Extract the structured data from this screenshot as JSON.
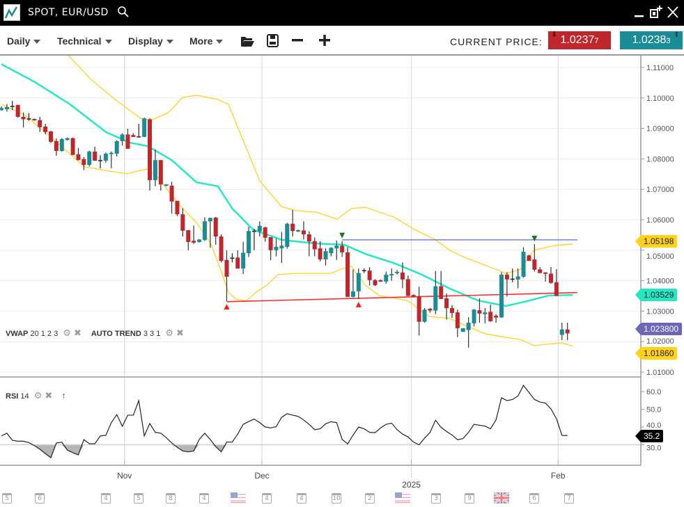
{
  "window": {
    "title": "SPOT, EUR/USD"
  },
  "toolbar": {
    "menus": [
      {
        "label": "Daily"
      },
      {
        "label": "Technical"
      },
      {
        "label": "Display"
      },
      {
        "label": "More"
      }
    ],
    "current_price_label": "CURRENT PRICE:",
    "bid": {
      "main": "1.0237",
      "pip": "7",
      "color": "#c0272d"
    },
    "ask": {
      "main": "1.0238",
      "pip": "3",
      "color": "#1a8c96"
    }
  },
  "indicators": {
    "vwap": {
      "name": "VWAP",
      "params": "20 1 2 3"
    },
    "autotrend": {
      "name": "AUTO TREND",
      "params": "3 3 1"
    },
    "rsi": {
      "name": "RSI",
      "params": "14"
    }
  },
  "tags": {
    "upper_band": "1.05198",
    "middle_band": "1.03529",
    "last_price": "1.023800",
    "lower_band": "1.01860",
    "rsi": "35.2"
  },
  "colors": {
    "up": "#1a8c96",
    "down": "#c0272d",
    "band": "#ffd21a",
    "mid": "#22e8c4",
    "resistance": "#4a6fd6",
    "support": "#ff2a2a",
    "last": "#6a66b8"
  },
  "chart_data": [
    {
      "type": "candlestick",
      "title": "SPOT, EUR/USD",
      "ylim": [
        1.0,
        1.115
      ],
      "y_ticks": [
        "1.11000",
        "1.10000",
        "1.09000",
        "1.08000",
        "1.07000",
        "1.06000",
        "1.05000",
        "1.04000",
        "1.03000",
        "1.02000",
        "1.01000"
      ],
      "grid": true,
      "x_labels": [
        {
          "label": "Nov",
          "index": 22.4
        },
        {
          "label": "Dec",
          "index": 47.4
        },
        {
          "label": "2025",
          "index": 74.6
        },
        {
          "label": "Feb",
          "index": 101.3
        }
      ],
      "candles_ohlc": [
        [
          1.096,
          1.0972,
          1.0958,
          1.0967
        ],
        [
          1.0963,
          1.098,
          1.0955,
          1.097
        ],
        [
          1.0972,
          1.099,
          1.096,
          1.0972
        ],
        [
          1.0977,
          1.0977,
          1.0935,
          1.0938
        ],
        [
          1.0938,
          1.0952,
          1.0903,
          1.093
        ],
        [
          1.0931,
          1.095,
          1.0925,
          1.0931
        ],
        [
          1.0931,
          1.0932,
          1.0925,
          1.0927
        ],
        [
          1.0927,
          1.0938,
          1.0888,
          1.0904
        ],
        [
          1.0906,
          1.0915,
          1.088,
          1.0888
        ],
        [
          1.089,
          1.0892,
          1.0852,
          1.0856
        ],
        [
          1.0858,
          1.0867,
          1.081,
          1.0826
        ],
        [
          1.0826,
          1.0868,
          1.0824,
          1.0865
        ],
        [
          1.0862,
          1.087,
          1.086,
          1.0868
        ],
        [
          1.0868,
          1.087,
          1.0812,
          1.0813
        ],
        [
          1.0815,
          1.0836,
          1.0795,
          1.0796
        ],
        [
          1.0799,
          1.0806,
          1.0763,
          1.078
        ],
        [
          1.078,
          1.0827,
          1.0775,
          1.0824
        ],
        [
          1.0824,
          1.084,
          1.0793,
          1.0794
        ],
        [
          1.0794,
          1.0812,
          1.0769,
          1.0795
        ],
        [
          1.0794,
          1.0821,
          1.0788,
          1.0817
        ],
        [
          1.0817,
          1.0824,
          1.0769,
          1.082
        ],
        [
          1.0817,
          1.0861,
          1.0808,
          1.0858
        ],
        [
          1.0858,
          1.0884,
          1.0844,
          1.088
        ],
        [
          1.088,
          1.0899,
          1.0833,
          1.0833
        ],
        [
          1.0878,
          1.0884,
          1.0872,
          1.0872
        ],
        [
          1.0872,
          1.0915,
          1.0872,
          1.0872
        ],
        [
          1.0872,
          1.0935,
          1.0872,
          1.0933
        ],
        [
          1.093,
          1.0933,
          1.0696,
          1.073
        ],
        [
          1.073,
          1.083,
          1.071,
          1.0796
        ],
        [
          1.0796,
          1.0796,
          1.0696,
          1.0716
        ],
        [
          1.0712,
          1.0717,
          1.071,
          1.0716
        ],
        [
          1.0712,
          1.0725,
          1.062,
          1.066
        ],
        [
          1.0662,
          1.0662,
          1.0612,
          1.0618
        ],
        [
          1.0618,
          1.0638,
          1.0545,
          1.0564
        ],
        [
          1.0566,
          1.0566,
          1.05,
          1.0527
        ],
        [
          1.0531,
          1.0581,
          1.052,
          1.0525
        ],
        [
          1.0527,
          1.0537,
          1.0525,
          1.0535
        ],
        [
          1.0534,
          1.0608,
          1.053,
          1.0595
        ],
        [
          1.0595,
          1.0607,
          1.0508,
          1.0606
        ],
        [
          1.0607,
          1.0609,
          1.0518,
          1.0545
        ],
        [
          1.0545,
          1.0552,
          1.046,
          1.0465
        ],
        [
          1.0468,
          1.05,
          1.0333,
          1.0413
        ],
        [
          1.0474,
          1.049,
          1.046,
          1.0475
        ],
        [
          1.0476,
          1.05,
          1.044,
          1.044
        ],
        [
          1.044,
          1.0528,
          1.0422,
          1.0492
        ],
        [
          1.049,
          1.0577,
          1.0478,
          1.0563
        ],
        [
          1.0562,
          1.057,
          1.05,
          1.0563
        ],
        [
          1.0562,
          1.0595,
          1.0545,
          1.058
        ],
        [
          1.0575,
          1.0577,
          1.0528,
          1.0541
        ],
        [
          1.0543,
          1.0543,
          1.0467,
          1.05
        ],
        [
          1.05,
          1.0538,
          1.048,
          1.0511
        ],
        [
          1.0506,
          1.056,
          1.0458,
          1.0515
        ],
        [
          1.0511,
          1.059,
          1.0505,
          1.0587
        ],
        [
          1.0587,
          1.0632,
          1.0545,
          1.0563
        ],
        [
          1.0562,
          1.0568,
          1.056,
          1.0566
        ],
        [
          1.0565,
          1.0595,
          1.0535,
          1.0552
        ],
        [
          1.0552,
          1.0562,
          1.048,
          1.0529
        ],
        [
          1.053,
          1.0542,
          1.048,
          1.0503
        ],
        [
          1.0506,
          1.053,
          1.0463,
          1.047
        ],
        [
          1.047,
          1.0507,
          1.045,
          1.0497
        ],
        [
          1.049,
          1.051,
          1.048,
          1.0508
        ],
        [
          1.0506,
          1.0532,
          1.0468,
          1.0515
        ],
        [
          1.0515,
          1.053,
          1.0478,
          1.0493
        ],
        [
          1.0493,
          1.051,
          1.0347,
          1.0347
        ],
        [
          1.0347,
          1.0437,
          1.0345,
          1.0365
        ],
        [
          1.0365,
          1.044,
          1.034,
          1.0425
        ],
        [
          1.0433,
          1.044,
          1.0425,
          1.0433
        ],
        [
          1.0433,
          1.0445,
          1.0384,
          1.0402
        ],
        [
          1.0402,
          1.0405,
          1.0383,
          1.0385
        ],
        [
          1.0402,
          1.0404,
          1.0396,
          1.0397
        ],
        [
          1.0397,
          1.043,
          1.039,
          1.042
        ],
        [
          1.0418,
          1.044,
          1.04,
          1.0422
        ],
        [
          1.0425,
          1.0435,
          1.042,
          1.0429
        ],
        [
          1.0427,
          1.046,
          1.0375,
          1.0404
        ],
        [
          1.0405,
          1.0417,
          1.0349,
          1.035
        ],
        [
          1.0353,
          1.0355,
          1.0345,
          1.0347
        ],
        [
          1.0349,
          1.038,
          1.022,
          1.0265
        ],
        [
          1.0265,
          1.031,
          1.0262,
          1.0305
        ],
        [
          1.0308,
          1.031,
          1.0295,
          1.0302
        ],
        [
          1.0302,
          1.0432,
          1.029,
          1.0382
        ],
        [
          1.0382,
          1.0432,
          1.034,
          1.034
        ],
        [
          1.0342,
          1.0358,
          1.0272,
          1.031
        ],
        [
          1.031,
          1.032,
          1.0278,
          1.0294
        ],
        [
          1.0296,
          1.0305,
          1.0215,
          1.0244
        ],
        [
          1.0232,
          1.0244,
          1.0232,
          1.0244
        ],
        [
          1.0238,
          1.028,
          1.018,
          1.0262
        ],
        [
          1.026,
          1.0307,
          1.025,
          1.0305
        ],
        [
          1.0303,
          1.0342,
          1.0262,
          1.0292
        ],
        [
          1.029,
          1.031,
          1.026,
          1.0296
        ],
        [
          1.0298,
          1.0322,
          1.0265,
          1.0267
        ],
        [
          1.0285,
          1.029,
          1.0262,
          1.0279
        ],
        [
          1.0279,
          1.0428,
          1.0279,
          1.042
        ],
        [
          1.042,
          1.0428,
          1.0348,
          1.0404
        ],
        [
          1.0405,
          1.044,
          1.0395,
          1.0406
        ],
        [
          1.0404,
          1.044,
          1.0375,
          1.0414
        ],
        [
          1.0413,
          1.051,
          1.041,
          1.0495
        ],
        [
          1.0483,
          1.0485,
          1.0465,
          1.0465
        ],
        [
          1.047,
          1.052,
          1.043,
          1.0436
        ],
        [
          1.0437,
          1.0445,
          1.0425,
          1.0425
        ],
        [
          1.0427,
          1.0428,
          1.0397,
          1.0423
        ],
        [
          1.0423,
          1.0445,
          1.039,
          1.0393
        ],
        [
          1.0395,
          1.0438,
          1.035,
          1.035
        ],
        [
          1.0222,
          1.0262,
          1.0205,
          1.024
        ],
        [
          1.024,
          1.0262,
          1.0205,
          1.0227
        ]
      ],
      "band_upper": [
        [
          12,
          1.1143
        ],
        [
          16.4,
          1.1059
        ],
        [
          20.2,
          1.1002
        ],
        [
          25.3,
          1.0933
        ],
        [
          27.2,
          1.0926
        ],
        [
          30.4,
          1.0952
        ],
        [
          33,
          1.1002
        ],
        [
          35.5,
          1.1009
        ],
        [
          39.4,
          1.0995
        ],
        [
          41.3,
          1.0979
        ],
        [
          42.6,
          1.0922
        ],
        [
          47,
          1.0728
        ],
        [
          51,
          1.0643
        ],
        [
          53.5,
          1.063
        ],
        [
          57.3,
          1.0625
        ],
        [
          61.1,
          1.0602
        ],
        [
          63.7,
          1.0637
        ],
        [
          66.2,
          1.0641
        ],
        [
          71.4,
          1.0609
        ],
        [
          75.2,
          1.0568
        ],
        [
          79,
          1.0534
        ],
        [
          81.6,
          1.05
        ],
        [
          84.2,
          1.0477
        ],
        [
          89.3,
          1.0442
        ],
        [
          91.8,
          1.0424
        ],
        [
          94.4,
          1.0436
        ],
        [
          96.9,
          1.05
        ],
        [
          100.8,
          1.0516
        ],
        [
          104,
          1.052
        ]
      ],
      "band_middle": [
        [
          0,
          1.1111
        ],
        [
          6.1,
          1.1052
        ],
        [
          12.5,
          1.0979
        ],
        [
          19,
          1.0888
        ],
        [
          23.4,
          1.0853
        ],
        [
          26.6,
          1.0842
        ],
        [
          31,
          1.0796
        ],
        [
          35.5,
          1.0723
        ],
        [
          39.4,
          1.071
        ],
        [
          42,
          1.0637
        ],
        [
          45.8,
          1.0568
        ],
        [
          51,
          1.0534
        ],
        [
          57.3,
          1.0522
        ],
        [
          62.4,
          1.0518
        ],
        [
          66.2,
          1.0488
        ],
        [
          71.4,
          1.0458
        ],
        [
          76.5,
          1.042
        ],
        [
          81.6,
          1.0374
        ],
        [
          86.7,
          1.0335
        ],
        [
          91.8,
          1.0317
        ],
        [
          95.7,
          1.0333
        ],
        [
          99.5,
          1.0351
        ],
        [
          104,
          1.0353
        ]
      ],
      "band_lower": [
        [
          0,
          1.0979
        ],
        [
          4.2,
          1.0945
        ],
        [
          8.7,
          1.0876
        ],
        [
          11.3,
          1.0835
        ],
        [
          15.1,
          1.0774
        ],
        [
          18.9,
          1.0762
        ],
        [
          22.8,
          1.0751
        ],
        [
          25.3,
          1.0762
        ],
        [
          26.6,
          1.0767
        ],
        [
          28.5,
          1.0739
        ],
        [
          30.4,
          1.0694
        ],
        [
          33,
          1.0637
        ],
        [
          35.5,
          1.0591
        ],
        [
          38.1,
          1.0522
        ],
        [
          40,
          1.0431
        ],
        [
          41.3,
          1.0363
        ],
        [
          42.6,
          1.034
        ],
        [
          44.5,
          1.0333
        ],
        [
          46.4,
          1.0363
        ],
        [
          48.3,
          1.0385
        ],
        [
          50.3,
          1.042
        ],
        [
          53.5,
          1.0424
        ],
        [
          59.9,
          1.0424
        ],
        [
          62.4,
          1.0442
        ],
        [
          63.7,
          1.0447
        ],
        [
          66.2,
          1.0385
        ],
        [
          68.8,
          1.0351
        ],
        [
          73.9,
          1.0335
        ],
        [
          77.7,
          1.0283
        ],
        [
          81.6,
          1.0276
        ],
        [
          84.2,
          1.0255
        ],
        [
          88,
          1.0226
        ],
        [
          91.8,
          1.0214
        ],
        [
          94.4,
          1.0207
        ],
        [
          96.9,
          1.0187
        ],
        [
          102,
          1.0196
        ],
        [
          104,
          1.0185
        ]
      ],
      "resistance_line": [
        [
          62,
          1.0534
        ],
        [
          104.8,
          1.0534
        ]
      ],
      "support_line": [
        [
          41,
          1.0331
        ],
        [
          104.8,
          1.0361
        ]
      ],
      "markers_up": [
        41,
        65
      ],
      "markers_down": [
        62,
        97
      ]
    },
    {
      "type": "line",
      "title": "RSI 14",
      "ylim": [
        25,
        65
      ],
      "y_ticks": [
        "60.0",
        "50.0",
        "40.0",
        "30.0"
      ],
      "threshold": 30,
      "values": [
        35,
        36.5,
        32.5,
        32,
        32,
        31.2,
        29.5,
        27.5,
        25,
        22.7,
        31,
        31.4,
        27,
        25.5,
        24.3,
        32.9,
        30.6,
        30.6,
        35,
        35.3,
        42.5,
        47,
        40.4,
        46.7,
        46.7,
        54.9,
        35,
        42,
        37,
        36.5,
        34,
        31,
        28.5,
        26.5,
        26,
        26.5,
        33,
        36.5,
        33,
        29,
        26,
        31.5,
        31.5,
        36,
        41.5,
        43.1,
        44.5,
        42.5,
        40,
        39.5,
        40.2,
        45.5,
        47.5,
        46.7,
        46,
        44,
        41.5,
        38.5,
        39,
        41.8,
        43,
        42.5,
        33,
        30.5,
        35.5,
        40,
        39,
        37,
        36.8,
        39.5,
        41.5,
        42.2,
        38.5,
        36,
        34.4,
        31.5,
        30,
        33.7,
        37,
        43.8,
        39.8,
        37.5,
        35.5,
        32.8,
        33.5,
        37,
        41.5,
        41,
        40.5,
        39,
        44,
        56.5,
        54.9,
        55.5,
        57.5,
        63.5,
        59.5,
        55.5,
        54.1,
        53.5,
        50.2,
        44.7,
        35.3,
        35.2
      ]
    }
  ],
  "calendar": [
    {
      "kind": "event",
      "count": "5"
    },
    {
      "kind": "event",
      "count": "6"
    },
    {
      "kind": "event",
      "count": "4"
    },
    {
      "kind": "event",
      "count": "5"
    },
    {
      "kind": "event",
      "count": "8"
    },
    {
      "kind": "event",
      "count": "4"
    },
    {
      "kind": "flag-us",
      "count": ""
    },
    {
      "kind": "event",
      "count": "4"
    },
    {
      "kind": "event",
      "count": "4"
    },
    {
      "kind": "event",
      "count": "10"
    },
    {
      "kind": "event",
      "count": "2"
    },
    {
      "kind": "flag-us",
      "count": ""
    },
    {
      "kind": "event",
      "count": "3"
    },
    {
      "kind": "event",
      "count": "9"
    },
    {
      "kind": "flag-uk",
      "count": ""
    },
    {
      "kind": "event",
      "count": "6"
    },
    {
      "kind": "event",
      "count": "7"
    }
  ]
}
